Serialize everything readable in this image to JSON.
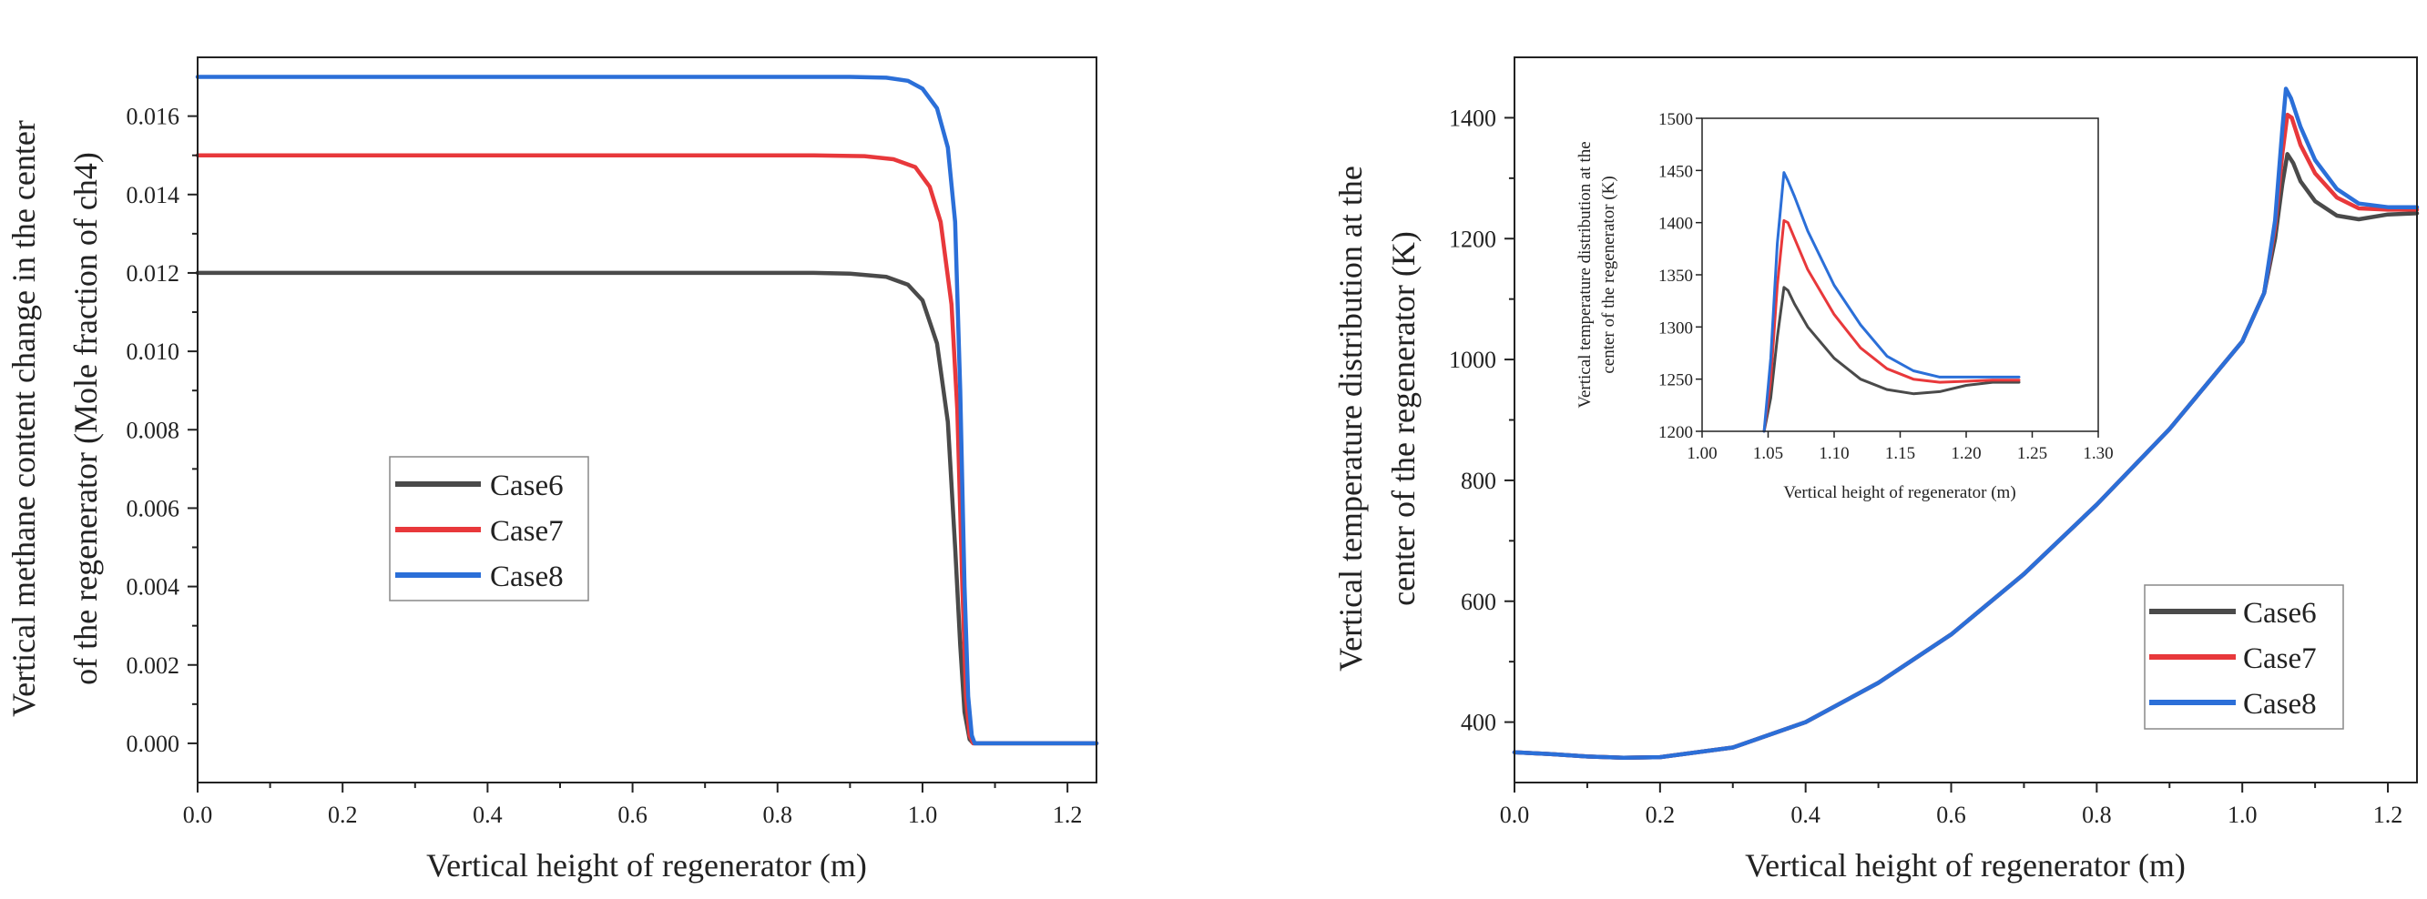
{
  "chart_data": [
    {
      "type": "line",
      "xlabel": "Vertical height of regenerator (m)",
      "ylabel_lines": [
        "Vertical methane content change in the center",
        "of the regenerator (Mole fraction of ch4)"
      ],
      "xlim": [
        0.0,
        1.24
      ],
      "ylim": [
        -0.001,
        0.0175
      ],
      "xticks": [
        0.0,
        0.2,
        0.4,
        0.6,
        0.8,
        1.0,
        1.2
      ],
      "xtick_labels": [
        "0.0",
        "0.2",
        "0.4",
        "0.6",
        "0.8",
        "1.0",
        "1.2"
      ],
      "yticks": [
        0.0,
        0.002,
        0.004,
        0.006,
        0.008,
        0.01,
        0.012,
        0.014,
        0.016
      ],
      "ytick_labels": [
        "0.000",
        "0.002",
        "0.004",
        "0.006",
        "0.008",
        "0.010",
        "0.012",
        "0.014",
        "0.016"
      ],
      "legend": [
        "Case6",
        "Case7",
        "Case8"
      ],
      "series": [
        {
          "name": "Case6",
          "color": "#4a4a4a",
          "x": [
            0.0,
            0.85,
            0.9,
            0.95,
            0.98,
            1.0,
            1.02,
            1.035,
            1.045,
            1.052,
            1.058,
            1.065,
            1.07,
            1.24
          ],
          "y": [
            0.012,
            0.012,
            0.01198,
            0.0119,
            0.0117,
            0.0113,
            0.0102,
            0.0082,
            0.005,
            0.0025,
            0.0008,
            0.0001,
            0.0,
            0.0
          ]
        },
        {
          "name": "Case7",
          "color": "#e8383b",
          "x": [
            0.0,
            0.85,
            0.92,
            0.96,
            0.99,
            1.01,
            1.025,
            1.04,
            1.048,
            1.055,
            1.06,
            1.065,
            1.07,
            1.24
          ],
          "y": [
            0.015,
            0.015,
            0.01498,
            0.0149,
            0.0147,
            0.0142,
            0.0133,
            0.0112,
            0.0085,
            0.004,
            0.0012,
            0.0002,
            0.0,
            0.0
          ]
        },
        {
          "name": "Case8",
          "color": "#2b6fd8",
          "x": [
            0.0,
            0.9,
            0.95,
            0.98,
            1.0,
            1.02,
            1.035,
            1.045,
            1.052,
            1.058,
            1.063,
            1.068,
            1.072,
            1.24
          ],
          "y": [
            0.017,
            0.017,
            0.01698,
            0.0169,
            0.0167,
            0.0162,
            0.0152,
            0.0133,
            0.009,
            0.004,
            0.0012,
            0.0002,
            0.0,
            0.0
          ]
        }
      ]
    },
    {
      "type": "line",
      "xlabel": "Vertical height of regenerator (m)",
      "ylabel_lines": [
        "Vertical temperature distribution at the",
        "center of the regenerator (K)"
      ],
      "xlim": [
        0.0,
        1.24
      ],
      "ylim": [
        300,
        1500
      ],
      "xticks": [
        0.0,
        0.2,
        0.4,
        0.6,
        0.8,
        1.0,
        1.2
      ],
      "xtick_labels": [
        "0.0",
        "0.2",
        "0.4",
        "0.6",
        "0.8",
        "1.0",
        "1.2"
      ],
      "yticks": [
        400,
        600,
        800,
        1000,
        1200,
        1400
      ],
      "ytick_labels": [
        "400",
        "600",
        "800",
        "1000",
        "1200",
        "1400"
      ],
      "legend": [
        "Case6",
        "Case7",
        "Case8"
      ],
      "series": [
        {
          "name": "Case6",
          "color": "#4a4a4a",
          "x": [
            0.0,
            0.05,
            0.1,
            0.15,
            0.2,
            0.3,
            0.4,
            0.5,
            0.6,
            0.7,
            0.8,
            0.9,
            1.0,
            1.03,
            1.045,
            1.055,
            1.062,
            1.07,
            1.08,
            1.1,
            1.13,
            1.16,
            1.2,
            1.24
          ],
          "y": [
            350,
            347,
            343,
            341,
            342,
            358,
            400,
            465,
            545,
            645,
            760,
            885,
            1030,
            1110,
            1200,
            1290,
            1340,
            1325,
            1295,
            1262,
            1238,
            1232,
            1240,
            1242
          ]
        },
        {
          "name": "Case7",
          "color": "#e8383b",
          "x": [
            0.0,
            0.05,
            0.1,
            0.15,
            0.2,
            0.3,
            0.4,
            0.5,
            0.6,
            0.7,
            0.8,
            0.9,
            1.0,
            1.03,
            1.045,
            1.055,
            1.062,
            1.068,
            1.08,
            1.1,
            1.13,
            1.16,
            1.2,
            1.24
          ],
          "y": [
            350,
            347,
            343,
            341,
            342,
            358,
            400,
            465,
            545,
            645,
            760,
            885,
            1030,
            1110,
            1220,
            1340,
            1405,
            1400,
            1355,
            1308,
            1268,
            1250,
            1248,
            1248
          ]
        },
        {
          "name": "Case8",
          "color": "#2b6fd8",
          "x": [
            0.0,
            0.05,
            0.1,
            0.15,
            0.2,
            0.3,
            0.4,
            0.5,
            0.6,
            0.7,
            0.8,
            0.9,
            1.0,
            1.03,
            1.045,
            1.055,
            1.06,
            1.067,
            1.08,
            1.1,
            1.13,
            1.16,
            1.2,
            1.24
          ],
          "y": [
            350,
            347,
            343,
            341,
            342,
            358,
            400,
            465,
            545,
            645,
            760,
            885,
            1030,
            1110,
            1230,
            1380,
            1448,
            1432,
            1385,
            1330,
            1282,
            1258,
            1252,
            1252
          ]
        }
      ],
      "inset": {
        "xlabel": "Vertical height of regenerator (m)",
        "ylabel_lines": [
          "Vertical temperature distribution at the",
          "center of the regenerator (K)"
        ],
        "xlim": [
          1.0,
          1.3
        ],
        "ylim": [
          1200,
          1500
        ],
        "xticks": [
          1.0,
          1.05,
          1.1,
          1.15,
          1.2,
          1.25,
          1.3
        ],
        "xtick_labels": [
          "1.00",
          "1.05",
          "1.10",
          "1.15",
          "1.20",
          "1.25",
          "1.30"
        ],
        "yticks": [
          1200,
          1250,
          1300,
          1350,
          1400,
          1450,
          1500
        ],
        "ytick_labels": [
          "1200",
          "1250",
          "1300",
          "1350",
          "1400",
          "1450",
          "1500"
        ],
        "series": [
          {
            "name": "Case6",
            "color": "#4a4a4a",
            "x": [
              1.047,
              1.052,
              1.057,
              1.062,
              1.065,
              1.07,
              1.08,
              1.1,
              1.12,
              1.14,
              1.16,
              1.18,
              1.2,
              1.22,
              1.24
            ],
            "y": [
              1200,
              1232,
              1290,
              1338,
              1335,
              1322,
              1300,
              1270,
              1250,
              1240,
              1236,
              1238,
              1244,
              1247,
              1247
            ]
          },
          {
            "name": "Case7",
            "color": "#e8383b",
            "x": [
              1.047,
              1.052,
              1.057,
              1.062,
              1.065,
              1.07,
              1.08,
              1.1,
              1.12,
              1.14,
              1.16,
              1.18,
              1.2,
              1.22,
              1.24
            ],
            "y": [
              1200,
              1250,
              1340,
              1402,
              1400,
              1385,
              1355,
              1312,
              1280,
              1260,
              1250,
              1247,
              1248,
              1249,
              1249
            ]
          },
          {
            "name": "Case8",
            "color": "#2b6fd8",
            "x": [
              1.047,
              1.052,
              1.057,
              1.062,
              1.065,
              1.07,
              1.08,
              1.1,
              1.12,
              1.14,
              1.16,
              1.18,
              1.2,
              1.22,
              1.24
            ],
            "y": [
              1200,
              1270,
              1380,
              1448,
              1440,
              1425,
              1392,
              1340,
              1302,
              1272,
              1258,
              1252,
              1252,
              1252,
              1252
            ]
          }
        ]
      }
    }
  ]
}
